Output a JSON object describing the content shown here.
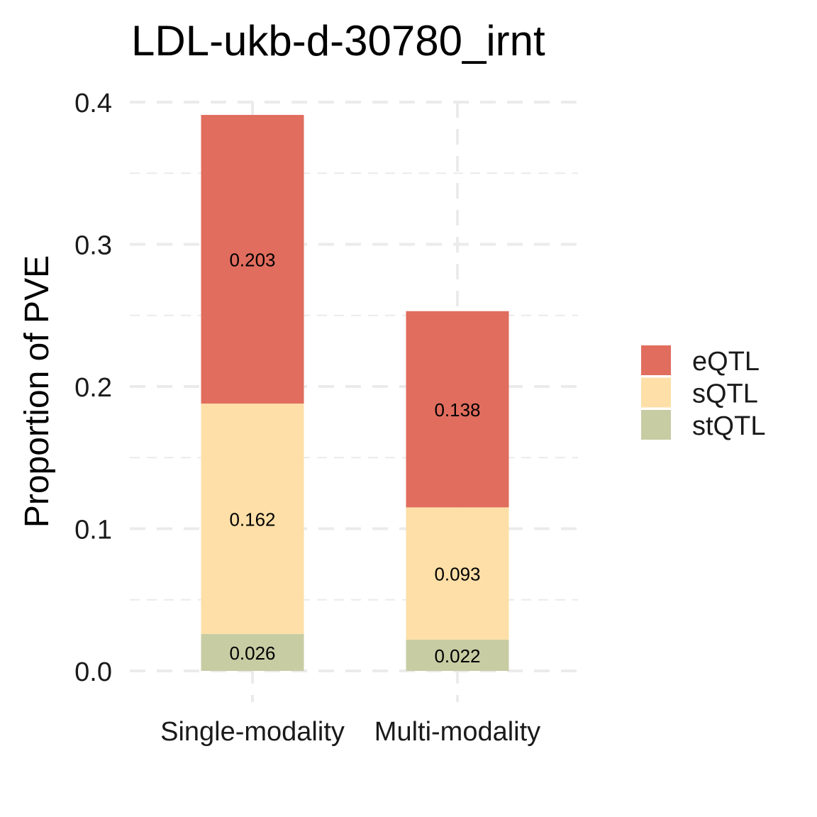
{
  "chart_data": {
    "type": "bar",
    "stacked": true,
    "title": "LDL-ukb-d-30780_irnt",
    "xlabel": "",
    "ylabel": "Proportion of PVE",
    "categories": [
      "Single-modality",
      "Multi-modality"
    ],
    "series": [
      {
        "name": "stQTL",
        "values": [
          0.026,
          0.022
        ],
        "labels": [
          "0.026",
          "0.022"
        ],
        "color": "#C8CCA3"
      },
      {
        "name": "sQTL",
        "values": [
          0.162,
          0.093
        ],
        "labels": [
          "0.162",
          "0.093"
        ],
        "color": "#FDDFA7"
      },
      {
        "name": "eQTL",
        "values": [
          0.203,
          0.138
        ],
        "labels": [
          "0.203",
          "0.138"
        ],
        "color": "#E16D5E"
      }
    ],
    "ylim": [
      0,
      0.4
    ],
    "yticks": [
      0.0,
      0.1,
      0.2,
      0.3,
      0.4
    ],
    "ytick_labels": [
      "0.0",
      "0.1",
      "0.2",
      "0.3",
      "0.4"
    ],
    "legend": {
      "position": "right",
      "entries": [
        "eQTL",
        "sQTL",
        "stQTL"
      ]
    },
    "grid": true
  }
}
